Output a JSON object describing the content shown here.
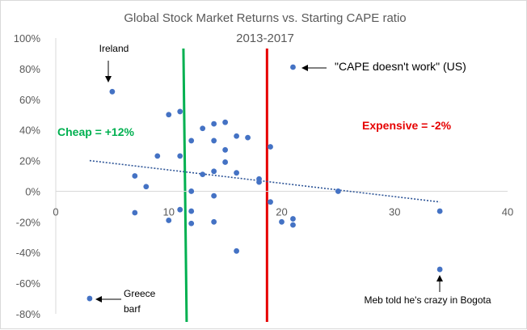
{
  "chart_data": {
    "type": "scatter",
    "title": "Global Stock Market Returns vs. Starting CAPE ratio",
    "subtitle": "2013-2017",
    "xlim": [
      0,
      40
    ],
    "ylim": [
      -80,
      100
    ],
    "x_ticks": [
      "0",
      "10",
      "20",
      "30",
      "40"
    ],
    "y_ticks": [
      "100%",
      "80%",
      "60%",
      "40%",
      "20%",
      "0%",
      "-20%",
      "-40%",
      "-60%",
      "-80%"
    ],
    "x_tick_values": [
      0,
      10,
      20,
      30,
      40
    ],
    "y_tick_values": [
      100,
      80,
      60,
      40,
      20,
      0,
      -20,
      -40,
      -60,
      -80
    ],
    "points": [
      {
        "x": 5,
        "y": 65
      },
      {
        "x": 21,
        "y": 81
      },
      {
        "x": 3,
        "y": -70
      },
      {
        "x": 34,
        "y": -51
      },
      {
        "x": 34,
        "y": -13
      },
      {
        "x": 10,
        "y": 50
      },
      {
        "x": 11,
        "y": 52
      },
      {
        "x": 9,
        "y": 23
      },
      {
        "x": 11,
        "y": 23
      },
      {
        "x": 12,
        "y": 33
      },
      {
        "x": 13,
        "y": 41
      },
      {
        "x": 14,
        "y": 44
      },
      {
        "x": 15,
        "y": 45
      },
      {
        "x": 14,
        "y": 33
      },
      {
        "x": 15,
        "y": 27
      },
      {
        "x": 15,
        "y": 19
      },
      {
        "x": 16,
        "y": 36
      },
      {
        "x": 17,
        "y": 35
      },
      {
        "x": 19,
        "y": 29
      },
      {
        "x": 7,
        "y": 10
      },
      {
        "x": 8,
        "y": 3
      },
      {
        "x": 13,
        "y": 11
      },
      {
        "x": 14,
        "y": 13
      },
      {
        "x": 16,
        "y": 12
      },
      {
        "x": 18,
        "y": 8
      },
      {
        "x": 18,
        "y": 6
      },
      {
        "x": 12,
        "y": 0
      },
      {
        "x": 14,
        "y": -3
      },
      {
        "x": 7,
        "y": -14
      },
      {
        "x": 10,
        "y": -19
      },
      {
        "x": 11,
        "y": -12
      },
      {
        "x": 12,
        "y": -13
      },
      {
        "x": 12,
        "y": -21
      },
      {
        "x": 14,
        "y": -20
      },
      {
        "x": 19,
        "y": -7
      },
      {
        "x": 20,
        "y": -20
      },
      {
        "x": 21,
        "y": -18
      },
      {
        "x": 21,
        "y": -22
      },
      {
        "x": 25,
        "y": 0
      },
      {
        "x": 16,
        "y": -39
      }
    ],
    "trendline": {
      "x1": 3,
      "y1": 20,
      "x2": 34,
      "y2": -7
    },
    "vertical_lines": [
      {
        "x": 11.3,
        "color": "#00b050"
      },
      {
        "x": 18.7,
        "color": "#e60000"
      }
    ],
    "annotations": {
      "ireland": "Ireland",
      "us": "\"CAPE doesn't work\" (US)",
      "greece_line1": "Greece",
      "greece_line2": "barf",
      "meb": "Meb told he's crazy in Bogota",
      "cheap": "Cheap = +12%",
      "expensive": "Expensive = -2%"
    },
    "colors": {
      "points": "#4472c4",
      "trendline": "#2e5597",
      "cheap": "#00b050",
      "expensive": "#e60000",
      "text": "#595959",
      "gridline": "#d9d9d9"
    },
    "grid": false
  }
}
